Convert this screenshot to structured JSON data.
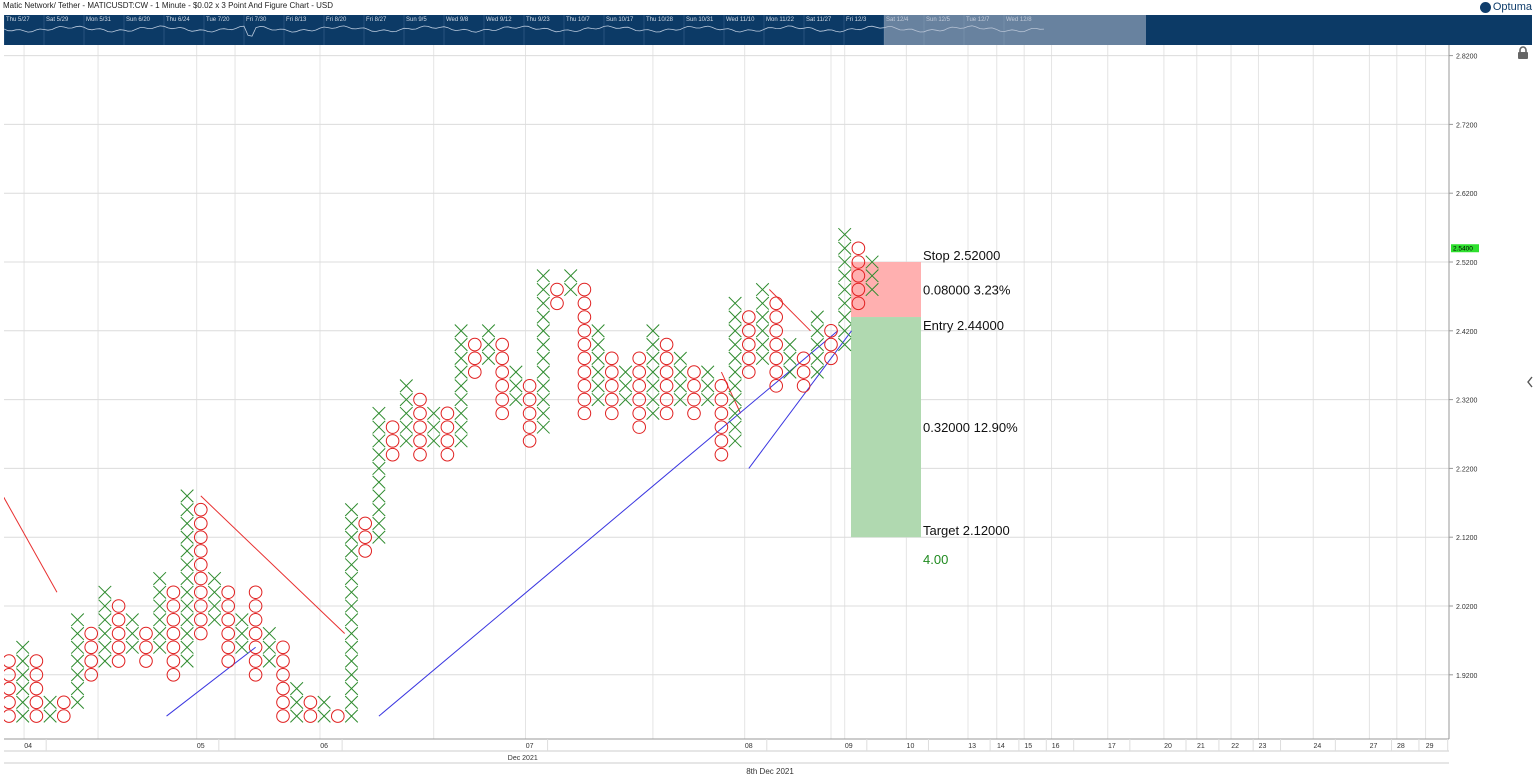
{
  "header": {
    "title": "Matic Network/ Tether - MATICUSDT:CW - 1 Minute - $0.02 x 3 Point And Figure Chart - USD",
    "brand": "Optuma"
  },
  "overview_labels": [
    "Thu 5/27",
    "Sat 5/29",
    "Mon 5/31",
    "Sun 6/20",
    "Thu 6/24",
    "Tue 7/20",
    "Fri 7/30",
    "Fri 8/13",
    "Fri 8/20",
    "Fri 8/27",
    "Sun 9/5",
    "Wed 9/8",
    "Wed 9/12",
    "Thu 9/23",
    "Thu 10/7",
    "Sun 10/17",
    "Thu 10/28",
    "Sun 10/31",
    "Wed 11/10",
    "Mon 11/22",
    "Sat 11/27",
    "Fri 12/3",
    "Sat 12/4",
    "Sun 12/5",
    "Tue 12/7",
    "Wed 12/8"
  ],
  "chart_data": {
    "type": "point_and_figure",
    "box_size": 0.02,
    "reversal": 3,
    "ylim": [
      1.86,
      2.86
    ],
    "y_ticks": [
      "2.8200",
      "2.7200",
      "2.6200",
      "2.5200",
      "2.4200",
      "2.3200",
      "2.2200",
      "2.1200",
      "2.0200",
      "1.9200"
    ],
    "current_price": "2.5400",
    "columns": [
      {
        "t": "O",
        "lo": 1.86,
        "hi": 1.94
      },
      {
        "t": "X",
        "lo": 1.86,
        "hi": 1.96
      },
      {
        "t": "O",
        "lo": 1.86,
        "hi": 1.94
      },
      {
        "t": "X",
        "lo": 1.86,
        "hi": 1.88
      },
      {
        "t": "O",
        "lo": 1.86,
        "hi": 1.88
      },
      {
        "t": "X",
        "lo": 1.88,
        "hi": 2.0
      },
      {
        "t": "O",
        "lo": 1.92,
        "hi": 1.98
      },
      {
        "t": "X",
        "lo": 1.94,
        "hi": 2.04
      },
      {
        "t": "O",
        "lo": 1.94,
        "hi": 2.02
      },
      {
        "t": "X",
        "lo": 1.96,
        "hi": 2.0
      },
      {
        "t": "O",
        "lo": 1.94,
        "hi": 1.98
      },
      {
        "t": "X",
        "lo": 1.96,
        "hi": 2.06
      },
      {
        "t": "O",
        "lo": 1.92,
        "hi": 2.04
      },
      {
        "t": "X",
        "lo": 1.94,
        "hi": 2.18
      },
      {
        "t": "O",
        "lo": 1.98,
        "hi": 2.16
      },
      {
        "t": "X",
        "lo": 2.0,
        "hi": 2.06
      },
      {
        "t": "O",
        "lo": 1.94,
        "hi": 2.04
      },
      {
        "t": "X",
        "lo": 1.96,
        "hi": 2.0
      },
      {
        "t": "O",
        "lo": 1.92,
        "hi": 2.04
      },
      {
        "t": "X",
        "lo": 1.94,
        "hi": 1.98
      },
      {
        "t": "O",
        "lo": 1.86,
        "hi": 1.96
      },
      {
        "t": "X",
        "lo": 1.86,
        "hi": 1.9
      },
      {
        "t": "O",
        "lo": 1.86,
        "hi": 1.88
      },
      {
        "t": "X",
        "lo": 1.86,
        "hi": 1.88
      },
      {
        "t": "O",
        "lo": 1.86,
        "hi": 1.86
      },
      {
        "t": "X",
        "lo": 1.86,
        "hi": 2.16
      },
      {
        "t": "O",
        "lo": 2.1,
        "hi": 2.14
      },
      {
        "t": "X",
        "lo": 2.12,
        "hi": 2.3
      },
      {
        "t": "O",
        "lo": 2.24,
        "hi": 2.28
      },
      {
        "t": "X",
        "lo": 2.26,
        "hi": 2.34
      },
      {
        "t": "O",
        "lo": 2.24,
        "hi": 2.32
      },
      {
        "t": "X",
        "lo": 2.26,
        "hi": 2.3
      },
      {
        "t": "O",
        "lo": 2.24,
        "hi": 2.3
      },
      {
        "t": "X",
        "lo": 2.26,
        "hi": 2.42
      },
      {
        "t": "O",
        "lo": 2.36,
        "hi": 2.4
      },
      {
        "t": "X",
        "lo": 2.38,
        "hi": 2.42
      },
      {
        "t": "O",
        "lo": 2.3,
        "hi": 2.4
      },
      {
        "t": "X",
        "lo": 2.32,
        "hi": 2.36
      },
      {
        "t": "O",
        "lo": 2.26,
        "hi": 2.34
      },
      {
        "t": "X",
        "lo": 2.28,
        "hi": 2.5
      },
      {
        "t": "O",
        "lo": 2.46,
        "hi": 2.48
      },
      {
        "t": "X",
        "lo": 2.48,
        "hi": 2.5
      },
      {
        "t": "O",
        "lo": 2.3,
        "hi": 2.48
      },
      {
        "t": "X",
        "lo": 2.32,
        "hi": 2.42
      },
      {
        "t": "O",
        "lo": 2.3,
        "hi": 2.38
      },
      {
        "t": "X",
        "lo": 2.32,
        "hi": 2.36
      },
      {
        "t": "O",
        "lo": 2.28,
        "hi": 2.38
      },
      {
        "t": "X",
        "lo": 2.3,
        "hi": 2.42
      },
      {
        "t": "O",
        "lo": 2.3,
        "hi": 2.4
      },
      {
        "t": "X",
        "lo": 2.32,
        "hi": 2.38
      },
      {
        "t": "O",
        "lo": 2.3,
        "hi": 2.36
      },
      {
        "t": "X",
        "lo": 2.32,
        "hi": 2.36
      },
      {
        "t": "O",
        "lo": 2.24,
        "hi": 2.34
      },
      {
        "t": "X",
        "lo": 2.26,
        "hi": 2.46
      },
      {
        "t": "O",
        "lo": 2.36,
        "hi": 2.44
      },
      {
        "t": "X",
        "lo": 2.38,
        "hi": 2.48
      },
      {
        "t": "O",
        "lo": 2.34,
        "hi": 2.46
      },
      {
        "t": "X",
        "lo": 2.36,
        "hi": 2.4
      },
      {
        "t": "O",
        "lo": 2.34,
        "hi": 2.38
      },
      {
        "t": "X",
        "lo": 2.36,
        "hi": 2.44
      },
      {
        "t": "O",
        "lo": 2.38,
        "hi": 2.42
      },
      {
        "t": "X",
        "lo": 2.4,
        "hi": 2.56
      },
      {
        "t": "O",
        "lo": 2.46,
        "hi": 2.54
      },
      {
        "t": "X",
        "lo": 2.48,
        "hi": 2.52
      }
    ],
    "trendlines": [
      {
        "color": "#e83030",
        "from": {
          "col": -1,
          "y": 2.2
        },
        "to": {
          "col": 3.5,
          "y": 2.04
        }
      },
      {
        "color": "#e83030",
        "from": {
          "col": 14,
          "y": 2.18
        },
        "to": {
          "col": 24.5,
          "y": 1.98
        }
      },
      {
        "color": "#e83030",
        "from": {
          "col": 52,
          "y": 2.36
        },
        "to": {
          "col": 53.4,
          "y": 2.3
        }
      },
      {
        "color": "#e83030",
        "from": {
          "col": 55.5,
          "y": 2.48
        },
        "to": {
          "col": 58.5,
          "y": 2.42
        }
      },
      {
        "color": "#3a36e0",
        "from": {
          "col": 11.5,
          "y": 1.86
        },
        "to": {
          "col": 18,
          "y": 1.96
        }
      },
      {
        "color": "#3a36e0",
        "from": {
          "col": 27,
          "y": 1.86
        },
        "to": {
          "col": 60.5,
          "y": 2.42
        }
      },
      {
        "color": "#3a36e0",
        "from": {
          "col": 54,
          "y": 2.22
        },
        "to": {
          "col": 61.5,
          "y": 2.42
        }
      }
    ],
    "trade": {
      "stop": {
        "label": "Stop",
        "value": "2.52000",
        "y": 2.52
      },
      "risk": {
        "amount": "0.08000",
        "percent": "3.23%"
      },
      "entry": {
        "label": "Entry",
        "value": "2.44000",
        "y": 2.44
      },
      "reward": {
        "amount": "0.32000",
        "percent": "12.90%"
      },
      "target": {
        "label": "Target",
        "value": "2.12000",
        "y": 2.12
      },
      "ratio": "4.00"
    },
    "x_labels": [
      {
        "label": "04",
        "col": 1.4
      },
      {
        "label": "05",
        "col": 14
      },
      {
        "label": "06",
        "col": 23
      },
      {
        "label": "07",
        "col": 38
      },
      {
        "label": "08",
        "col": 54
      },
      {
        "label": "09",
        "col": 61.3
      },
      {
        "label": "10",
        "col": 65.8
      },
      {
        "label": "13",
        "col": 70.3
      },
      {
        "label": "14",
        "col": 72.4
      },
      {
        "label": "15",
        "col": 74.4
      },
      {
        "label": "16",
        "col": 76.4
      },
      {
        "label": "17",
        "col": 80.5
      },
      {
        "label": "20",
        "col": 84.6
      },
      {
        "label": "21",
        "col": 87
      },
      {
        "label": "22",
        "col": 89.5
      },
      {
        "label": "23",
        "col": 91.5
      },
      {
        "label": "24",
        "col": 95.5
      },
      {
        "label": "27",
        "col": 99.6
      },
      {
        "label": "28",
        "col": 101.6
      },
      {
        "label": "29",
        "col": 103.7
      }
    ],
    "month_label": "Dec 2021",
    "date_label": "8th Dec 2021",
    "colors": {
      "x": "#2e8b2e",
      "o": "#e02020",
      "stop_zone": "#ffb0b0",
      "target_zone": "#b0d9b0",
      "ratio": "#1f8a1f",
      "price_tag": "#2ee02e"
    }
  }
}
